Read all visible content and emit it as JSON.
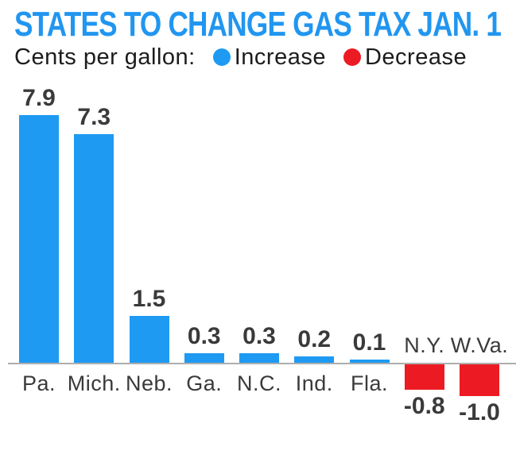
{
  "chart_data": {
    "type": "bar",
    "title": "STATES TO CHANGE GAS TAX JAN. 1",
    "subtitle": "Cents per gallon:",
    "legend": [
      {
        "label": "Increase",
        "color": "#1e9af2"
      },
      {
        "label": "Decrease",
        "color": "#ec1b23"
      }
    ],
    "legend_position": "top",
    "categories": [
      "Pa.",
      "Mich.",
      "Neb.",
      "Ga.",
      "N.C.",
      "Ind.",
      "Fla.",
      "N.Y.",
      "W.Va."
    ],
    "values": [
      7.9,
      7.3,
      1.5,
      0.3,
      0.3,
      0.2,
      0.1,
      -0.8,
      -1.0
    ],
    "ylim": [
      -1.0,
      7.9
    ],
    "grid": false,
    "colors": {
      "increase_bar": "#1e9af2",
      "decrease_bar": "#ec1b23",
      "title_text": "#2196f0",
      "label_text": "#3a3a3a",
      "axis_line": "#aeaeae"
    }
  }
}
